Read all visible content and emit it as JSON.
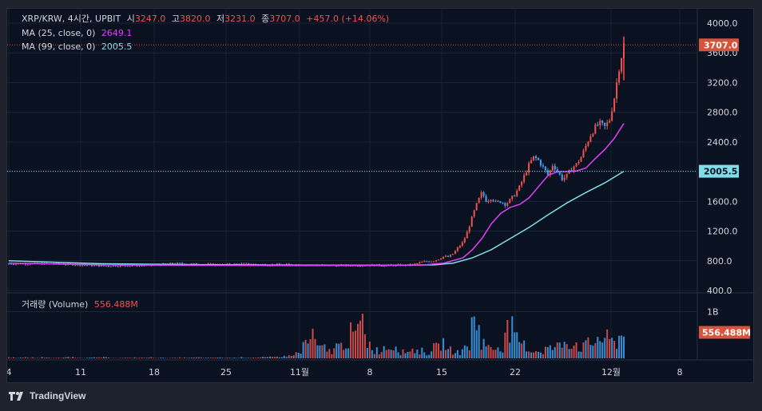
{
  "header": {
    "symbol": "XRP/KRW, 4시간, UPBIT",
    "open_label": "시",
    "open_value": "3247.0",
    "high_label": "고",
    "high_value": "3820.0",
    "low_label": "저",
    "low_value": "3231.0",
    "close_label": "종",
    "close_value": "3707.0",
    "change": "+457.0 (+14.06%)"
  },
  "indicators": [
    {
      "label": "MA (25, close, 0)",
      "value": "2649.1",
      "color": "#e040fb"
    },
    {
      "label": "MA (99, close, 0)",
      "value": "2005.5",
      "color": "#80deea"
    }
  ],
  "volume_pane": {
    "label": "거래량 (Volume)",
    "value": "556.488M",
    "axis_tick": "1B",
    "axis_badge": "556.488M"
  },
  "price_axis": {
    "ticks": [
      "4000.0",
      "3600.0",
      "3200.0",
      "2800.0",
      "2400.0",
      "2000.0",
      "1600.0",
      "1200.0",
      "800.0",
      "400.0"
    ],
    "last_price_badge": "3707.0",
    "ma99_badge": "2005.5"
  },
  "time_axis": {
    "ticks": [
      "4",
      "11",
      "18",
      "25",
      "11월",
      "8",
      "15",
      "22",
      "12월",
      "8"
    ]
  },
  "colors": {
    "up": "#ef5350",
    "down": "#42a5f5",
    "ma25": "#e040fb",
    "ma99": "#80deea",
    "badge_price": "#d4543c",
    "badge_ma99": "#80deea"
  },
  "watermark": "TradingView",
  "chart_data": {
    "type": "candlestick",
    "ylim": [
      400,
      4000
    ],
    "price_points": [
      [
        0,
        760
      ],
      [
        10,
        760
      ],
      [
        20,
        730
      ],
      [
        30,
        740
      ],
      [
        35,
        765
      ],
      [
        40,
        755
      ],
      [
        45,
        748
      ],
      [
        50,
        760
      ],
      [
        55,
        745
      ],
      [
        60,
        750
      ],
      [
        65,
        740
      ],
      [
        70,
        735
      ],
      [
        75,
        742
      ],
      [
        80,
        738
      ],
      [
        85,
        745
      ],
      [
        88,
        790
      ],
      [
        90,
        800
      ],
      [
        92,
        860
      ],
      [
        93,
        850
      ],
      [
        94,
        900
      ],
      [
        95,
        980
      ],
      [
        96,
        1050
      ],
      [
        97,
        1200
      ],
      [
        98,
        1400
      ],
      [
        99,
        1580
      ],
      [
        100,
        1720
      ],
      [
        101,
        1600
      ],
      [
        102,
        1650
      ],
      [
        103,
        1580
      ],
      [
        104,
        1600
      ],
      [
        105,
        1560
      ],
      [
        106,
        1620
      ],
      [
        107,
        1700
      ],
      [
        108,
        1800
      ],
      [
        109,
        1950
      ],
      [
        110,
        2100
      ],
      [
        111,
        2200
      ],
      [
        112,
        2150
      ],
      [
        113,
        2050
      ],
      [
        114,
        1950
      ],
      [
        115,
        2100
      ],
      [
        116,
        2000
      ],
      [
        117,
        1900
      ],
      [
        118,
        1950
      ],
      [
        119,
        2050
      ],
      [
        120,
        2100
      ],
      [
        121,
        2200
      ],
      [
        122,
        2350
      ],
      [
        123,
        2500
      ],
      [
        124,
        2600
      ],
      [
        125,
        2650
      ],
      [
        126,
        2600
      ],
      [
        127,
        2700
      ],
      [
        128,
        3000
      ],
      [
        129,
        3400
      ],
      [
        130,
        3707
      ]
    ],
    "ma25_points": [
      [
        0,
        770
      ],
      [
        20,
        745
      ],
      [
        40,
        740
      ],
      [
        60,
        735
      ],
      [
        80,
        738
      ],
      [
        88,
        745
      ],
      [
        92,
        770
      ],
      [
        96,
        840
      ],
      [
        98,
        950
      ],
      [
        100,
        1100
      ],
      [
        102,
        1300
      ],
      [
        104,
        1440
      ],
      [
        106,
        1520
      ],
      [
        108,
        1560
      ],
      [
        110,
        1650
      ],
      [
        112,
        1800
      ],
      [
        114,
        1950
      ],
      [
        116,
        2000
      ],
      [
        118,
        2000
      ],
      [
        120,
        2010
      ],
      [
        122,
        2050
      ],
      [
        124,
        2180
      ],
      [
        126,
        2300
      ],
      [
        128,
        2450
      ],
      [
        130,
        2649
      ]
    ],
    "ma99_points": [
      [
        0,
        800
      ],
      [
        20,
        760
      ],
      [
        40,
        748
      ],
      [
        60,
        742
      ],
      [
        80,
        740
      ],
      [
        90,
        745
      ],
      [
        94,
        770
      ],
      [
        98,
        840
      ],
      [
        102,
        950
      ],
      [
        106,
        1100
      ],
      [
        110,
        1250
      ],
      [
        114,
        1420
      ],
      [
        118,
        1580
      ],
      [
        122,
        1720
      ],
      [
        126,
        1850
      ],
      [
        130,
        2005
      ]
    ],
    "volume_bars_M": [
      20,
      15,
      18,
      12,
      25,
      10,
      14,
      30,
      18,
      12,
      16,
      22,
      14,
      10,
      12,
      18,
      15,
      20,
      14,
      12,
      10,
      16,
      14,
      18,
      12,
      20,
      16,
      14,
      22,
      18,
      20,
      25,
      30,
      45,
      60,
      120,
      380,
      500,
      250,
      180,
      300,
      420,
      600,
      900,
      350,
      200,
      280,
      320,
      150,
      220,
      180,
      140,
      260,
      380,
      200,
      160,
      300,
      850,
      400,
      250,
      300,
      700,
      450,
      320,
      200,
      180,
      250,
      300,
      420,
      380,
      280,
      350,
      500,
      480,
      400,
      556
    ]
  }
}
